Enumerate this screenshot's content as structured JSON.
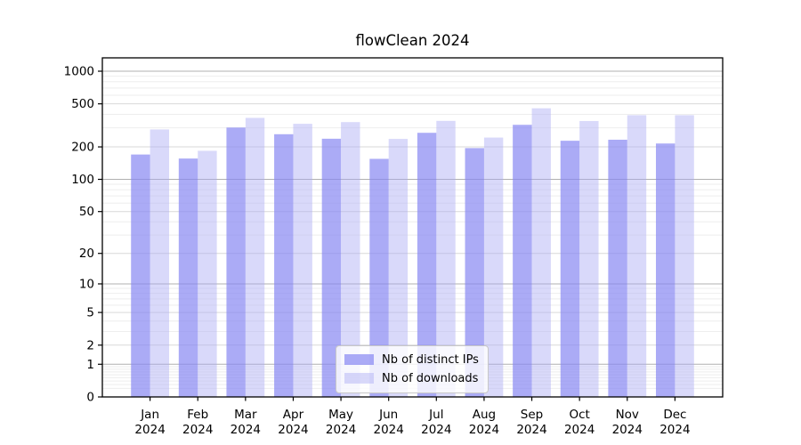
{
  "chart_data": {
    "type": "bar",
    "title": "flowClean 2024",
    "categories": [
      "Jan",
      "Feb",
      "Mar",
      "Apr",
      "May",
      "Jun",
      "Jul",
      "Aug",
      "Sep",
      "Oct",
      "Nov",
      "Dec"
    ],
    "x_sublabel": "2024",
    "series": [
      {
        "name": "Nb of distinct IPs",
        "color": "rgba(136,136,242,0.70)",
        "color_hex": "#acacf6",
        "values": [
          170,
          156,
          302,
          262,
          238,
          155,
          270,
          195,
          320,
          228,
          233,
          215
        ]
      },
      {
        "name": "Nb of downloads",
        "color": "rgba(170,170,244,0.45)",
        "color_hex": "#d9d9f9",
        "values": [
          290,
          184,
          371,
          327,
          339,
          237,
          348,
          244,
          455,
          347,
          393,
          393
        ]
      }
    ],
    "y_axis": {
      "scale": "log1p",
      "ticks": [
        1000,
        500,
        200,
        100,
        50,
        20,
        10,
        5,
        2,
        1,
        0
      ],
      "range": [
        0,
        1330
      ]
    },
    "grid": "both",
    "grid_colors": {
      "decade": "#b0b0b0",
      "labeled": "#d9d9d9",
      "minor": "#eeeeee"
    },
    "legend": {
      "position": "lower center"
    }
  }
}
